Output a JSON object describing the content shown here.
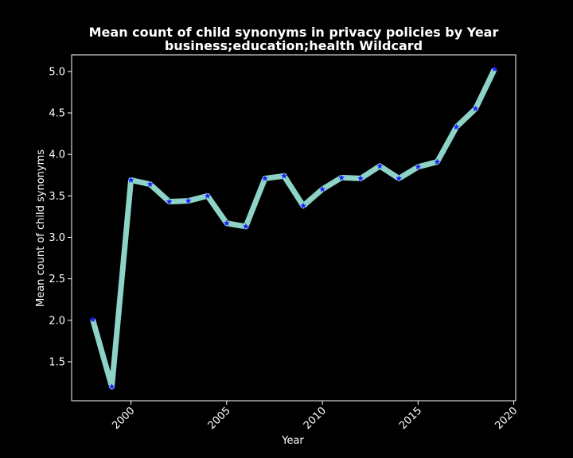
{
  "chart_data": {
    "type": "line",
    "title": "Mean count of child synonyms in privacy policies by Year",
    "subtitle": "business;education;health Wildcard",
    "xlabel": "Year",
    "ylabel": "Mean count of child synonyms",
    "xlim": [
      1996.9,
      2020.1
    ],
    "ylim": [
      1.03,
      5.2
    ],
    "xticks": [
      2000,
      2005,
      2010,
      2015,
      2020
    ],
    "yticks": [
      1.5,
      2.0,
      2.5,
      3.0,
      3.5,
      4.0,
      4.5,
      5.0
    ],
    "grid": false,
    "series": [
      {
        "line_color": "#8dd3c7",
        "marker_color": "#1f1fff",
        "marker": "star",
        "x": [
          1998,
          1999,
          2000,
          2001,
          2002,
          2003,
          2004,
          2005,
          2006,
          2007,
          2008,
          2009,
          2010,
          2011,
          2012,
          2013,
          2014,
          2015,
          2016,
          2017,
          2018,
          2019
        ],
        "y": [
          2.01,
          1.2,
          3.69,
          3.64,
          3.43,
          3.44,
          3.5,
          3.17,
          3.13,
          3.71,
          3.74,
          3.38,
          3.58,
          3.72,
          3.71,
          3.86,
          3.71,
          3.85,
          3.91,
          4.33,
          4.55,
          5.03
        ]
      }
    ]
  }
}
